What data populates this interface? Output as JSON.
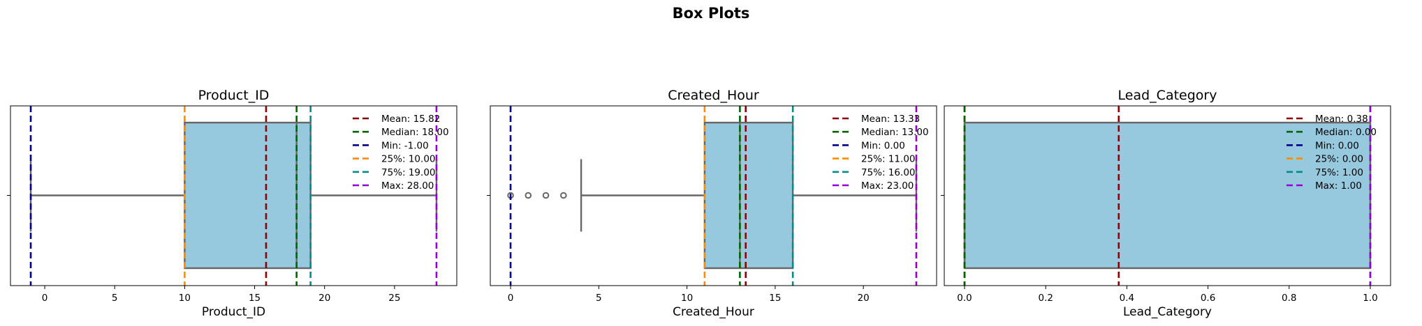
{
  "chart_data": {
    "title": "Box Plots",
    "type": "box",
    "orientation": "horizontal",
    "box_color": "#96c8de",
    "box_edge_color": "#666666",
    "legend_placement": "upper-right",
    "legend_order": [
      "Mean",
      "Median",
      "Min",
      "25%",
      "75%",
      "Max"
    ],
    "line_colors": {
      "Mean": "#8b0000",
      "Median": "#006400",
      "Min": "#00008b",
      "25%": "#ff8c00",
      "75%": "#008b8b",
      "Max": "#9400d3"
    },
    "panels": [
      {
        "title": "Product_ID",
        "xlabel": "Product_ID",
        "xlim": [
          -2.45,
          29.45
        ],
        "xticks": [
          0,
          5,
          10,
          15,
          20,
          25
        ],
        "xtick_labels": [
          "0",
          "5",
          "10",
          "15",
          "20",
          "25"
        ],
        "box": {
          "q1": 10,
          "median": 18,
          "q3": 19,
          "whisker_low": -1,
          "whisker_high": 28
        },
        "outliers": [],
        "lines": {
          "Mean": 15.82,
          "Median": 18,
          "Min": -1,
          "25%": 10,
          "75%": 19,
          "Max": 28
        },
        "legend_labels": [
          "Mean: 15.82",
          "Median: 18.00",
          "Min: -1.00",
          "25%: 10.00",
          "75%: 19.00",
          "Max: 28.00"
        ]
      },
      {
        "title": "Created_Hour",
        "xlabel": "Created_Hour",
        "xlim": [
          -1.15,
          24.15
        ],
        "xticks": [
          0,
          5,
          10,
          15,
          20
        ],
        "xtick_labels": [
          "0",
          "5",
          "10",
          "15",
          "20"
        ],
        "box": {
          "q1": 11,
          "median": 13,
          "q3": 16,
          "whisker_low": 4,
          "whisker_high": 23
        },
        "outliers": [
          0,
          1,
          2,
          3
        ],
        "lines": {
          "Mean": 13.33,
          "Median": 13,
          "Min": 0,
          "25%": 11,
          "75%": 16,
          "Max": 23
        },
        "legend_labels": [
          "Mean: 13.33",
          "Median: 13.00",
          "Min: 0.00",
          "25%: 11.00",
          "75%: 16.00",
          "Max: 23.00"
        ]
      },
      {
        "title": "Lead_Category",
        "xlabel": "Lead_Category",
        "xlim": [
          -0.05,
          1.05
        ],
        "xticks": [
          0,
          0.2,
          0.4,
          0.6,
          0.8,
          1.0
        ],
        "xtick_labels": [
          "0.0",
          "0.2",
          "0.4",
          "0.6",
          "0.8",
          "1.0"
        ],
        "box": {
          "q1": 0,
          "median": 0,
          "q3": 1,
          "whisker_low": 0,
          "whisker_high": 1
        },
        "outliers": [],
        "lines": {
          "Mean": 0.38,
          "Median": 0,
          "Min": 0,
          "25%": 0,
          "75%": 1,
          "Max": 1
        },
        "legend_labels": [
          "Mean: 0.38",
          "Median: 0.00",
          "Min: 0.00",
          "25%: 0.00",
          "75%: 1.00",
          "Max: 1.00"
        ]
      }
    ]
  }
}
